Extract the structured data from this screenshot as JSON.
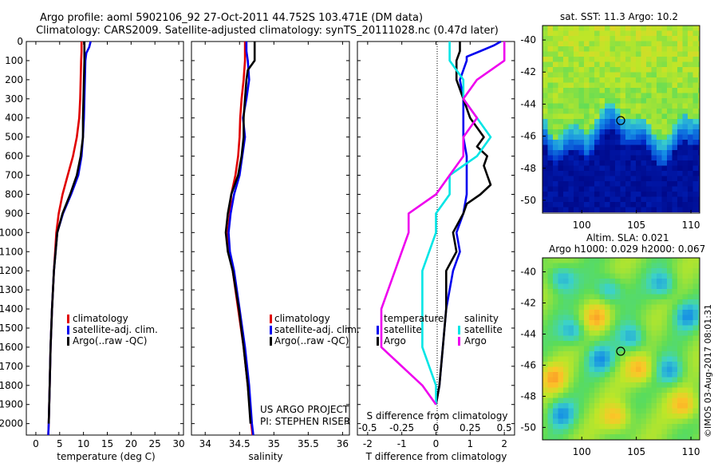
{
  "header": {
    "line1": "Argo profile: aoml 5902106_92 27-Oct-2011 44.752S 103.471E (DM data)",
    "line2": "Climatology: CARS2009. Satellite-adjusted climatology: synTS_20111028.nc (0.47d later)"
  },
  "colors": {
    "climatology": "#e00000",
    "satellite": "#0000ee",
    "argo": "#000000",
    "cyan": "#00e5e5",
    "magenta": "#ee00ee"
  },
  "depth_ticks": [
    "0",
    "100",
    "200",
    "300",
    "400",
    "500",
    "600",
    "700",
    "800",
    "900",
    "1000",
    "1100",
    "1200",
    "1300",
    "1400",
    "1500",
    "1600",
    "1700",
    "1800",
    "1900",
    "2000"
  ],
  "legend": {
    "climatology": "climatology",
    "satellite": "satellite-adj. clim.",
    "argo": "Argo(..raw -QC)"
  },
  "credit": {
    "line1": "US ARGO PROJECT",
    "line2": "PI: STEPHEN RISER"
  },
  "diff_legend": {
    "temperature": "temperature",
    "salinity": "salinity",
    "satellite": "satellite",
    "argo": "Argo"
  },
  "sst_map": {
    "title": "sat. SST: 11.3 Argo: 10.2",
    "yticks": [
      "-40",
      "-42",
      "-44",
      "-46",
      "-48",
      "-50"
    ],
    "xticks": [
      "100",
      "105",
      "110"
    ]
  },
  "sla_map": {
    "title1": "Altim. SLA: 0.021",
    "title2": "Argo h1000: 0.029 h2000: 0.067",
    "yticks": [
      "-40",
      "-42",
      "-44",
      "-46",
      "-48",
      "-50"
    ],
    "xticks": [
      "100",
      "105",
      "110"
    ]
  },
  "watermark": "©IMOS 03-Aug-2017 08:01:31",
  "chart_data": [
    {
      "type": "line",
      "title": "",
      "xlabel": "temperature (deg C)",
      "ylabel": "depth",
      "xlim": [
        -2,
        31
      ],
      "ylim": [
        2060,
        0
      ],
      "xticks": [
        "0",
        "5",
        "10",
        "15",
        "20",
        "25",
        "30"
      ],
      "series": [
        {
          "name": "climatology",
          "depth": [
            0,
            50,
            100,
            200,
            300,
            400,
            500,
            600,
            700,
            800,
            900,
            1000,
            1200,
            1400,
            1600,
            1800,
            2000,
            2060
          ],
          "values": [
            9.6,
            9.6,
            9.5,
            9.4,
            9.3,
            9.1,
            8.6,
            7.8,
            6.7,
            5.6,
            4.8,
            4.3,
            3.8,
            3.4,
            3.1,
            2.9,
            2.7,
            2.6
          ]
        },
        {
          "name": "satellite-adj. clim.",
          "depth": [
            0,
            30,
            60,
            100,
            200,
            300,
            400,
            500,
            600,
            700,
            800,
            900,
            1000,
            1200,
            1400,
            1600,
            1800,
            2000,
            2060
          ],
          "values": [
            11.5,
            11.2,
            10.6,
            10.4,
            10.3,
            10.2,
            10.1,
            9.9,
            9.6,
            8.9,
            7.4,
            5.7,
            4.5,
            3.8,
            3.4,
            3.1,
            2.9,
            2.7,
            2.6
          ]
        },
        {
          "name": "Argo",
          "depth": [
            0,
            50,
            100,
            200,
            300,
            400,
            500,
            600,
            700,
            800,
            900,
            1000,
            1200,
            1400,
            1600,
            1800,
            2000
          ],
          "values": [
            10.2,
            10.2,
            10.2,
            10.1,
            10.0,
            9.9,
            9.9,
            9.4,
            8.6,
            7.2,
            5.6,
            4.5,
            3.8,
            3.4,
            3.1,
            2.9,
            2.7
          ]
        }
      ]
    },
    {
      "type": "line",
      "title": "",
      "xlabel": "salinity",
      "ylabel": "depth",
      "xlim": [
        33.8,
        36.1
      ],
      "ylim": [
        2060,
        0
      ],
      "xticks": [
        "34",
        "34.5",
        "35",
        "35.5",
        "36"
      ],
      "series": [
        {
          "name": "climatology",
          "depth": [
            0,
            100,
            200,
            300,
            400,
            500,
            600,
            700,
            800,
            900,
            1000,
            1100,
            1200,
            1400,
            1600,
            1800,
            2000,
            2060
          ],
          "values": [
            34.58,
            34.58,
            34.56,
            34.53,
            34.51,
            34.5,
            34.48,
            34.44,
            34.38,
            34.36,
            34.33,
            34.35,
            34.4,
            34.48,
            34.56,
            34.62,
            34.67,
            34.69
          ]
        },
        {
          "name": "satellite-adj. clim.",
          "depth": [
            0,
            50,
            100,
            200,
            300,
            400,
            500,
            600,
            700,
            800,
            900,
            1000,
            1100,
            1200,
            1400,
            1600,
            1800,
            2000,
            2060
          ],
          "values": [
            34.6,
            34.6,
            34.62,
            34.64,
            34.6,
            34.55,
            34.58,
            34.54,
            34.5,
            34.42,
            34.37,
            34.34,
            34.36,
            34.42,
            34.5,
            34.58,
            34.64,
            34.68,
            34.7
          ]
        },
        {
          "name": "Argo",
          "depth": [
            0,
            100,
            150,
            200,
            300,
            400,
            500,
            600,
            700,
            800,
            900,
            1000,
            1100,
            1200,
            1400,
            1600,
            1800,
            2000
          ],
          "values": [
            34.72,
            34.72,
            34.62,
            34.6,
            34.58,
            34.56,
            34.56,
            34.53,
            34.48,
            34.38,
            34.33,
            34.3,
            34.33,
            34.4,
            34.49,
            34.56,
            34.62,
            34.66
          ]
        }
      ]
    },
    {
      "type": "line",
      "title": "",
      "xlabel": "T difference from climatology",
      "xlabel2": "S difference from climatology",
      "xlim": [
        -2.3,
        2.3
      ],
      "ylim": [
        2060,
        0
      ],
      "xticks": [
        "-2",
        "-1",
        "0",
        "1",
        "2"
      ],
      "xticks_top": [
        "-0.5",
        "-0.25",
        "0",
        "0.25",
        "0.5"
      ],
      "series": [
        {
          "name": "temperature satellite",
          "depth": [
            0,
            20,
            50,
            80,
            100,
            200,
            300,
            400,
            500,
            600,
            700,
            800,
            900,
            1000,
            1100,
            1200,
            1400,
            1600,
            1800,
            1900
          ],
          "values": [
            1.9,
            1.7,
            1.3,
            0.9,
            0.9,
            0.7,
            0.8,
            0.8,
            0.8,
            0.9,
            0.9,
            0.9,
            0.8,
            0.6,
            0.7,
            0.5,
            0.3,
            0.2,
            0.1,
            0.0
          ]
        },
        {
          "name": "temperature Argo",
          "depth": [
            0,
            50,
            100,
            200,
            300,
            400,
            500,
            550,
            600,
            650,
            700,
            750,
            800,
            850,
            900,
            1000,
            1100,
            1200,
            1400,
            1600,
            1800,
            1900
          ],
          "values": [
            0.7,
            0.7,
            0.6,
            0.6,
            0.8,
            1.0,
            1.4,
            1.2,
            1.5,
            1.4,
            1.5,
            1.6,
            1.3,
            0.9,
            0.8,
            0.5,
            0.6,
            0.3,
            0.3,
            0.2,
            0.1,
            0.0
          ]
        },
        {
          "name": "salinity satellite",
          "depth": [
            0,
            100,
            200,
            300,
            400,
            500,
            600,
            700,
            800,
            900,
            1000,
            1200,
            1400,
            1600,
            1800,
            1900
          ],
          "values": [
            0.1,
            0.1,
            0.2,
            0.2,
            0.3,
            0.4,
            0.3,
            0.1,
            0.1,
            0.0,
            0.0,
            -0.1,
            -0.1,
            -0.1,
            0.0,
            0.0
          ]
        },
        {
          "name": "salinity Argo",
          "depth": [
            0,
            100,
            200,
            300,
            400,
            500,
            600,
            700,
            800,
            900,
            1000,
            1200,
            1400,
            1600,
            1800,
            1900
          ],
          "values": [
            0.5,
            0.5,
            0.3,
            0.2,
            0.3,
            0.2,
            0.2,
            0.1,
            0.0,
            -0.2,
            -0.2,
            -0.3,
            -0.4,
            -0.4,
            -0.1,
            0.0
          ]
        }
      ]
    }
  ]
}
